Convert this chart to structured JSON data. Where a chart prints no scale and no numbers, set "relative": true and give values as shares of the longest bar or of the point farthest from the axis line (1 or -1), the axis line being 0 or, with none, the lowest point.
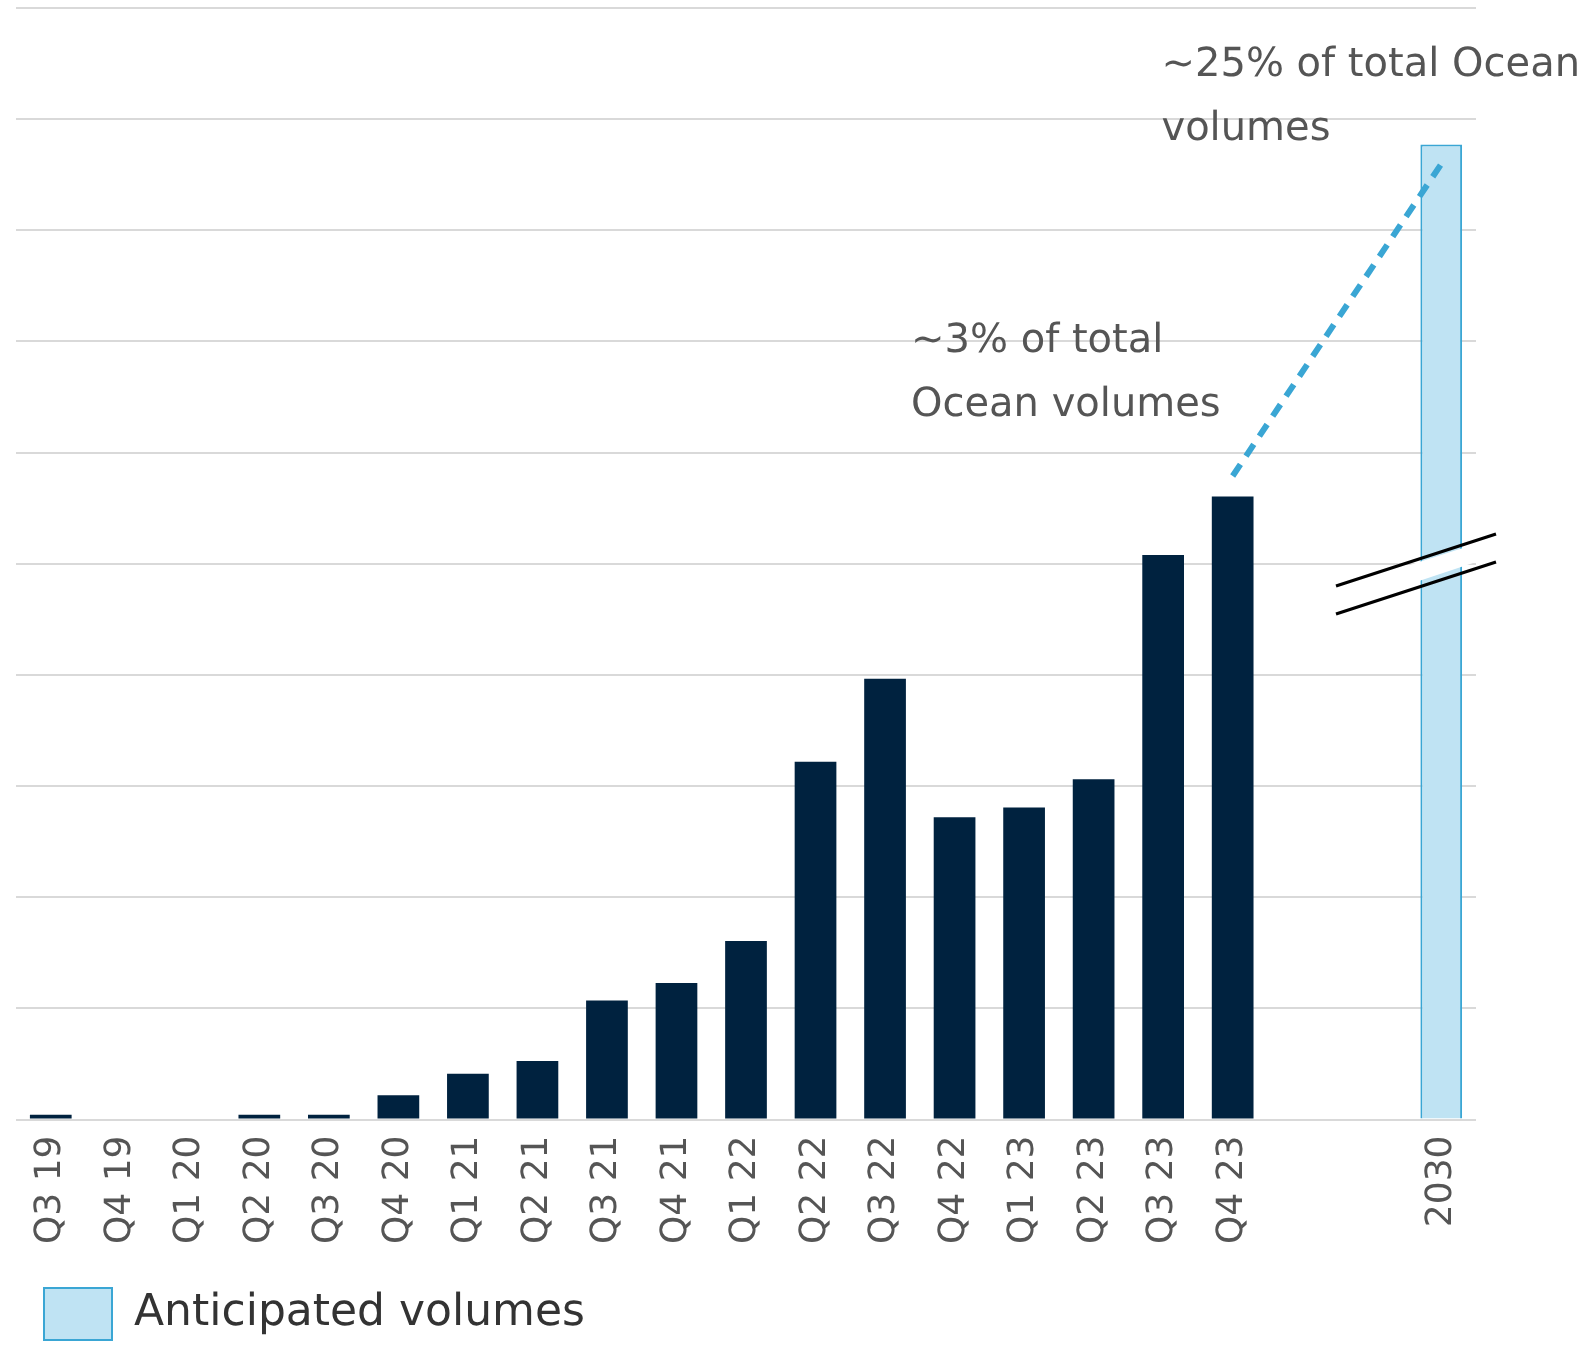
{
  "chart_data": {
    "type": "bar",
    "relative": true,
    "grid": "y",
    "legend": "bottom left",
    "categories": [
      "Q3 19",
      "Q4 19",
      "Q1 20",
      "Q2 20",
      "Q3 20",
      "Q4 20",
      "Q1 21",
      "Q2 21",
      "Q3 21",
      "Q4 21",
      "Q1 22",
      "Q2 22",
      "Q3 22",
      "Q4 22",
      "Q1 23",
      "Q2 23",
      "Q3 23",
      "Q4 23",
      null,
      null,
      "2030"
    ],
    "series": [
      {
        "color": "#00223f",
        "values": [
          0.005,
          0,
          0,
          0.005,
          0.005,
          0.025,
          0.047,
          0.06,
          0.122,
          0.14,
          0.183,
          0.367,
          0.452,
          0.31,
          0.32,
          0.349,
          0.579,
          0.639,
          null,
          null,
          null
        ]
      },
      {
        "name": "Anticipated volumes",
        "color": "#bfe3f3",
        "values": [
          null,
          null,
          null,
          null,
          null,
          null,
          null,
          null,
          null,
          null,
          null,
          null,
          null,
          null,
          null,
          null,
          null,
          null,
          null,
          null,
          1
        ]
      },
      {
        "type": "line",
        "color": "#3aa6d4",
        "line_style": "dashed",
        "marker": "none",
        "values": [
          null,
          null,
          null,
          null,
          null,
          null,
          null,
          null,
          null,
          null,
          null,
          null,
          null,
          null,
          null,
          null,
          null,
          0.66,
          null,
          null,
          0.98
        ]
      }
    ],
    "annotations": [
      {
        "text": "~3% of total Ocean volumes",
        "x": "Q4 23",
        "y": 0.66
      },
      {
        "text": "~25% of total Ocean volumes",
        "x": "2030",
        "y": 0.98
      }
    ]
  }
}
